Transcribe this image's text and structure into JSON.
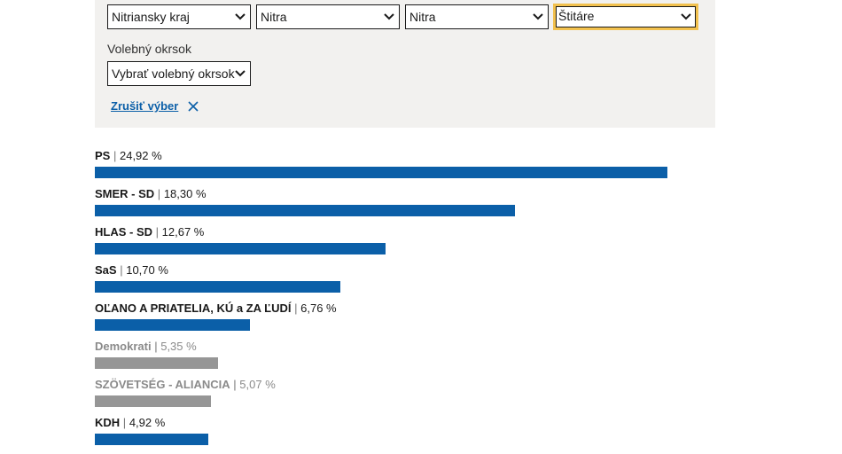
{
  "filters": {
    "region": "Nitriansky kraj",
    "district": "Nitra",
    "municipality": "Nitra",
    "area": "Štitáre",
    "precinct_label": "Volebný okrsok",
    "precinct": "Vybrať volebný okrsok",
    "clear_label": "Zrušiť výber"
  },
  "colors": {
    "primary": "#0b5fa8",
    "muted": "#969696",
    "focus": "#f2c14e"
  },
  "results": [
    {
      "name": "PS",
      "percent_text": "24,92 %",
      "value": 24.92,
      "color": "#0b5fa8",
      "muted": false
    },
    {
      "name": "SMER - SD",
      "percent_text": "18,30 %",
      "value": 18.3,
      "color": "#0b5fa8",
      "muted": false
    },
    {
      "name": "HLAS - SD",
      "percent_text": "12,67 %",
      "value": 12.67,
      "color": "#0b5fa8",
      "muted": false
    },
    {
      "name": "SaS",
      "percent_text": "10,70 %",
      "value": 10.7,
      "color": "#0b5fa8",
      "muted": false
    },
    {
      "name": "OĽANO A PRIATELIA, KÚ a ZA ĽUDÍ",
      "percent_text": "6,76 %",
      "value": 6.76,
      "color": "#0b5fa8",
      "muted": false
    },
    {
      "name": "Demokrati",
      "percent_text": "5,35 %",
      "value": 5.35,
      "color": "#969696",
      "muted": true
    },
    {
      "name": "SZÖVETSÉG - ALIANCIA",
      "percent_text": "5,07 %",
      "value": 5.07,
      "color": "#969696",
      "muted": true
    },
    {
      "name": "KDH",
      "percent_text": "4,92 %",
      "value": 4.92,
      "color": "#0b5fa8",
      "muted": false
    }
  ]
}
